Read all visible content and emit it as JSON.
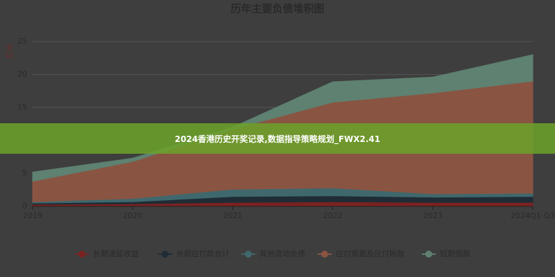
{
  "chart_data": {
    "type": "stacked-area",
    "title": "历年主要负债堆积图",
    "y_label": "亿元",
    "categories": [
      "2019",
      "2020",
      "2021",
      "2022",
      "2023",
      "2024Q1-Q3"
    ],
    "series": [
      {
        "name": "长期递延收益",
        "color": "#7a2220",
        "values": [
          0.3,
          0.4,
          0.6,
          0.7,
          0.6,
          0.6
        ]
      },
      {
        "name": "长期应付款合计",
        "color": "#1f2c36",
        "values": [
          0.2,
          0.3,
          0.9,
          0.9,
          0.8,
          0.9
        ]
      },
      {
        "name": "其他流动负债",
        "color": "#3f686d",
        "values": [
          0.2,
          0.5,
          1.1,
          1.2,
          0.5,
          0.5
        ]
      },
      {
        "name": "应付票据及应付账款",
        "color": "#8a5442",
        "values": [
          3.1,
          5.6,
          9.1,
          13.0,
          15.3,
          17.0
        ]
      },
      {
        "name": "短期借款",
        "color": "#5e8171",
        "values": [
          1.4,
          0.5,
          0.3,
          3.1,
          2.4,
          4.0
        ]
      }
    ],
    "ylim": [
      0,
      25
    ],
    "yticks": [
      0,
      5,
      10,
      15,
      20,
      25
    ],
    "grid": true
  },
  "banner": "2024香港历史开奖记录,数据指导策略规划_FWX2.41"
}
